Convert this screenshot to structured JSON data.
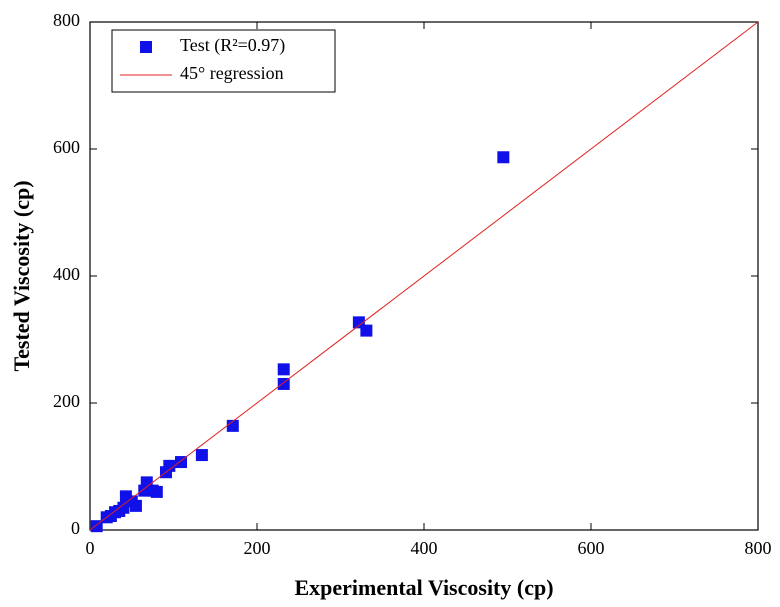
{
  "chart_data": {
    "type": "scatter",
    "x_label": "Experimental Viscosity (cp)",
    "y_label": "Tested Viscosity (cp)",
    "xlim": [
      0,
      800
    ],
    "ylim": [
      0,
      800
    ],
    "xticks": [
      0,
      200,
      400,
      600,
      800
    ],
    "yticks": [
      0,
      200,
      400,
      600,
      800
    ],
    "legend": "upper left",
    "series": [
      {
        "name": "Test (R²=0.97)",
        "type": "scatter",
        "color": "#1010e8",
        "x": [
          495,
          322,
          331,
          232,
          232,
          171,
          134,
          109,
          95,
          91,
          80,
          75,
          68,
          65,
          55,
          50,
          43,
          40,
          35,
          30,
          25,
          20,
          8
        ],
        "values": [
          587,
          327,
          314,
          253,
          230,
          164,
          118,
          107,
          101,
          91,
          60,
          62,
          75,
          62,
          38,
          45,
          53,
          35,
          30,
          28,
          22,
          20,
          6
        ]
      },
      {
        "name": "45° regression",
        "type": "line",
        "color": "#e02020",
        "x": [
          0,
          800
        ],
        "values": [
          0,
          800
        ]
      }
    ]
  }
}
